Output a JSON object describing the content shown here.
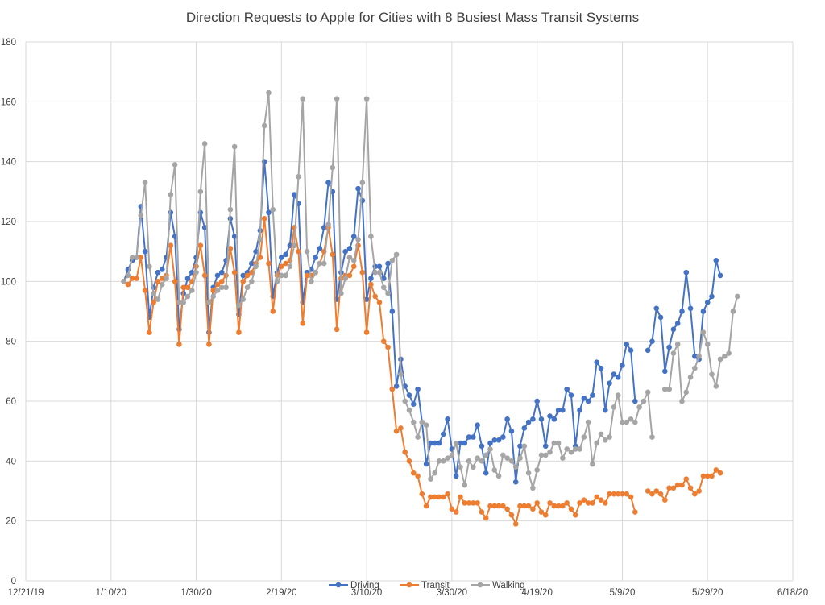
{
  "chart_data": {
    "type": "line",
    "title": "Direction Requests to Apple for Cities with 8  Busiest Mass Transit Systems",
    "xlabel": "",
    "ylabel": "",
    "x_start": "2020-01-13",
    "x_ticks": [
      "12/21/19",
      "1/10/20",
      "1/30/20",
      "2/19/20",
      "3/10/20",
      "3/30/20",
      "4/19/20",
      "5/9/20",
      "5/29/20",
      "6/18/20"
    ],
    "y_ticks": [
      "0",
      "20",
      "40",
      "60",
      "80",
      "100",
      "120",
      "140",
      "160",
      "180"
    ],
    "ylim": [
      0,
      180
    ],
    "grid": true,
    "legend_position": "bottom",
    "gap_dates": [
      "2020-05-11",
      "2020-05-12"
    ],
    "series": [
      {
        "name": "Driving",
        "color": "#4472C4",
        "values": [
          100,
          104,
          107,
          108,
          125,
          110,
          88,
          98,
          103,
          104,
          108,
          123,
          115,
          84,
          96,
          101,
          103,
          108,
          123,
          118,
          83,
          98,
          102,
          103,
          107,
          121,
          115,
          89,
          102,
          103,
          106,
          110,
          117,
          140,
          123,
          95,
          103,
          108,
          109,
          112,
          129,
          126,
          93,
          103,
          104,
          108,
          111,
          118,
          133,
          130,
          94,
          103,
          110,
          111,
          115,
          131,
          127,
          94,
          101,
          105,
          105,
          101,
          106,
          90,
          65,
          74,
          65,
          62,
          59,
          64,
          53,
          39,
          46,
          46,
          46,
          49,
          54,
          44,
          35,
          46,
          46,
          48,
          48,
          52,
          45,
          36,
          46,
          47,
          47,
          48,
          54,
          50,
          33,
          45,
          51,
          53,
          54,
          60,
          54,
          45,
          55,
          54,
          57,
          57,
          64,
          62,
          45,
          57,
          61,
          60,
          62,
          73,
          71,
          57,
          66,
          69,
          68,
          72,
          79,
          77,
          60,
          null,
          null,
          77,
          80,
          91,
          88,
          70,
          78,
          84,
          86,
          90,
          103,
          91,
          75,
          74,
          90,
          93,
          95,
          107,
          102
        ]
      },
      {
        "name": "Transit",
        "color": "#ED7D31",
        "values": [
          100,
          99,
          101,
          101,
          108,
          97,
          83,
          93,
          100,
          101,
          102,
          112,
          100,
          79,
          98,
          98,
          100,
          105,
          112,
          102,
          79,
          97,
          99,
          100,
          102,
          111,
          103,
          83,
          100,
          102,
          103,
          106,
          108,
          121,
          106,
          90,
          102,
          105,
          106,
          107,
          118,
          110,
          86,
          102,
          102,
          103,
          106,
          110,
          118,
          109,
          84,
          101,
          102,
          102,
          105,
          112,
          103,
          83,
          99,
          95,
          93,
          80,
          78,
          64,
          50,
          51,
          43,
          40,
          36,
          35,
          29,
          25,
          28,
          28,
          28,
          28,
          29,
          24,
          23,
          28,
          26,
          26,
          26,
          26,
          23,
          21,
          25,
          25,
          25,
          25,
          24,
          22,
          19,
          25,
          25,
          25,
          24,
          26,
          23,
          22,
          26,
          25,
          25,
          25,
          26,
          24,
          22,
          26,
          27,
          26,
          26,
          28,
          27,
          26,
          29,
          29,
          29,
          29,
          29,
          28,
          23,
          null,
          null,
          30,
          29,
          30,
          29,
          27,
          31,
          31,
          32,
          32,
          34,
          31,
          29,
          30,
          35,
          35,
          35,
          37,
          36
        ]
      },
      {
        "name": "Walking",
        "color": "#A5A5A5",
        "values": [
          100,
          102,
          108,
          108,
          122,
          133,
          105,
          96,
          94,
          99,
          101,
          129,
          139,
          93,
          93,
          95,
          97,
          103,
          130,
          146,
          93,
          95,
          97,
          98,
          98,
          124,
          145,
          92,
          94,
          98,
          100,
          105,
          114,
          152,
          163,
          124,
          100,
          102,
          102,
          105,
          112,
          135,
          161,
          110,
          100,
          103,
          106,
          106,
          119,
          138,
          161,
          96,
          101,
          108,
          107,
          114,
          133,
          161,
          115,
          103,
          103,
          98,
          96,
          107,
          109,
          69,
          60,
          57,
          53,
          48,
          53,
          52,
          34,
          36,
          40,
          40,
          41,
          42,
          46,
          38,
          32,
          40,
          38,
          41,
          40,
          42,
          44,
          37,
          35,
          42,
          41,
          40,
          38,
          41,
          45,
          36,
          31,
          37,
          42,
          42,
          43,
          46,
          46,
          41,
          44,
          43,
          44,
          44,
          48,
          53,
          39,
          46,
          49,
          47,
          48,
          58,
          62,
          53,
          53,
          54,
          53,
          58,
          60,
          63,
          48,
          null,
          null,
          64,
          64,
          76,
          79,
          60,
          63,
          68,
          71,
          75,
          83,
          79,
          69,
          65,
          74,
          75,
          76,
          90,
          95
        ]
      }
    ]
  }
}
